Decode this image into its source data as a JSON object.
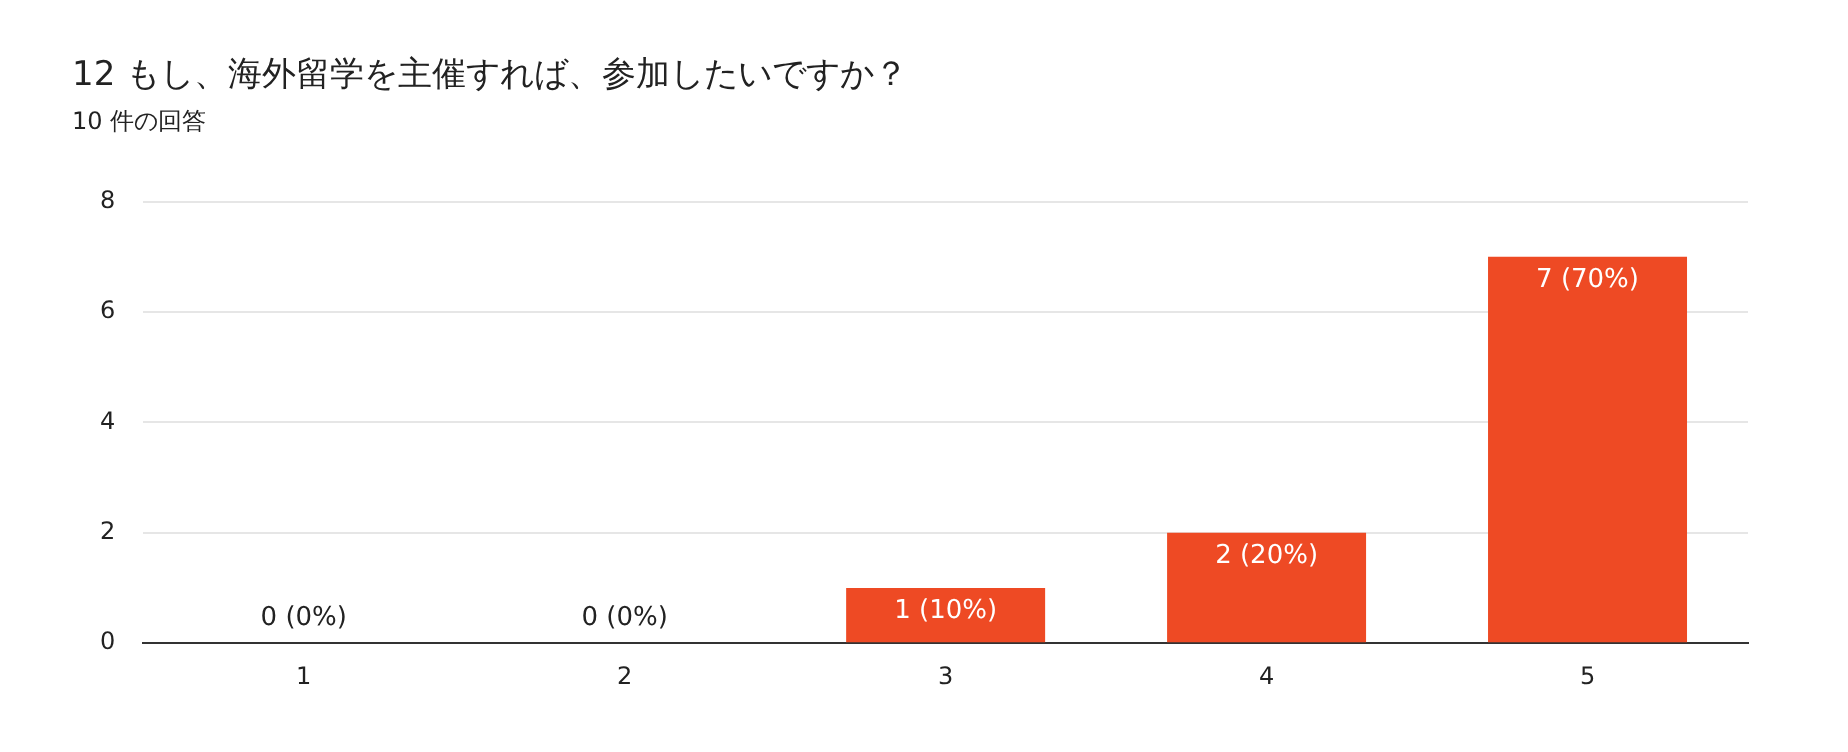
{
  "chart_data": {
    "type": "bar",
    "title": "12 もし、海外留学を主催すれば、参加したいですか？",
    "subtitle": "10 件の回答",
    "categories": [
      "1",
      "2",
      "3",
      "4",
      "5"
    ],
    "values": [
      0,
      0,
      1,
      2,
      7
    ],
    "value_labels": [
      "0 (0%)",
      "0 (0%)",
      "1 (10%)",
      "2 (20%)",
      "7 (70%)"
    ],
    "color": "#ee4a24",
    "ylim": [
      0,
      8
    ],
    "yticks": [
      0,
      2,
      4,
      6,
      8
    ],
    "grid": "y",
    "legend": false
  }
}
